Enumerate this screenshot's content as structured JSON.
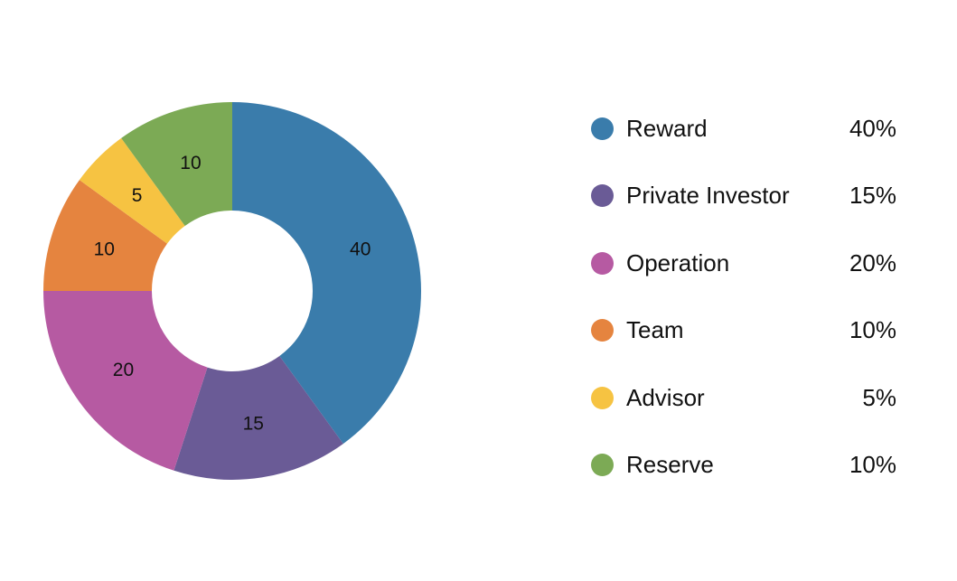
{
  "chart_data": {
    "type": "pie",
    "variant": "donut",
    "categories": [
      "Reward",
      "Private Investor",
      "Operation",
      "Team",
      "Advisor",
      "Reserve"
    ],
    "values": [
      40,
      15,
      20,
      10,
      5,
      10
    ],
    "slice_labels": [
      "40",
      "15",
      "20",
      "10",
      "5",
      "10"
    ],
    "percent_labels": [
      "40%",
      "15%",
      "20%",
      "10%",
      "5%",
      "10%"
    ],
    "colors": [
      "#3a7cab",
      "#6a5b96",
      "#b65aa2",
      "#e5843f",
      "#f6c342",
      "#7caa55"
    ],
    "legend_placement": "right",
    "start_angle": "top",
    "direction": "clockwise"
  }
}
